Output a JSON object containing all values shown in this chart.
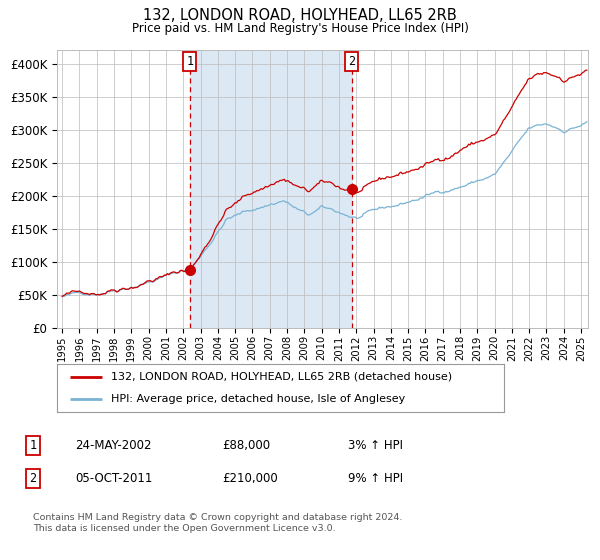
{
  "title": "132, LONDON ROAD, HOLYHEAD, LL65 2RB",
  "subtitle": "Price paid vs. HM Land Registry's House Price Index (HPI)",
  "legend_line1": "132, LONDON ROAD, HOLYHEAD, LL65 2RB (detached house)",
  "legend_line2": "HPI: Average price, detached house, Isle of Anglesey",
  "transaction1_date": "24-MAY-2002",
  "transaction1_price": 88000,
  "transaction1_pricefmt": "£88,000",
  "transaction1_label": "1",
  "transaction1_hpi_pct": "3% ↑ HPI",
  "transaction2_date": "05-OCT-2011",
  "transaction2_price": 210000,
  "transaction2_pricefmt": "£210,000",
  "transaction2_label": "2",
  "transaction2_hpi_pct": "9% ↑ HPI",
  "footer_line1": "Contains HM Land Registry data © Crown copyright and database right 2024.",
  "footer_line2": "This data is licensed under the Open Government Licence v3.0.",
  "hpi_color": "#7ab3d4",
  "price_color": "#cc0000",
  "shading_color": "#dce9f5",
  "background_color": "#ffffff",
  "grid_color": "#bbbbbb",
  "ylim": [
    0,
    420000
  ],
  "yticks": [
    0,
    50000,
    100000,
    150000,
    200000,
    250000,
    300000,
    350000,
    400000
  ],
  "xlim_start": 1994.7,
  "xlim_end": 2025.4,
  "t1_year": 2002.388,
  "t2_year": 2011.753
}
